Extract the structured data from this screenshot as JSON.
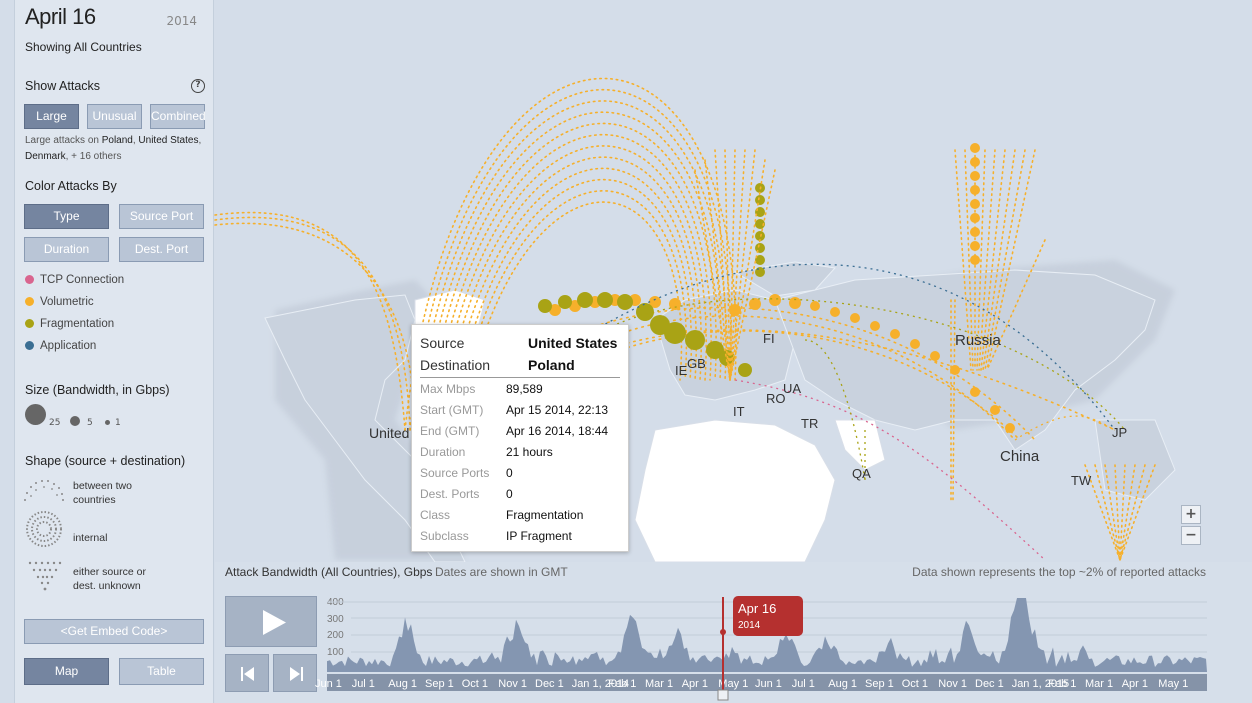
{
  "header": {
    "date": "April 16",
    "year": "2014",
    "subtitle": "Showing All Countries"
  },
  "show_attacks": {
    "title": "Show Attacks",
    "help_label": "?",
    "buttons": [
      "Large",
      "Unusual",
      "Combined"
    ],
    "active": "Large",
    "desc_prefix": "Large attacks on ",
    "desc_countries": [
      "Poland",
      "United States",
      "Denmark"
    ],
    "desc_suffix": ", + 16 others"
  },
  "color_by": {
    "title": "Color Attacks By",
    "buttons": [
      "Type",
      "Source Port",
      "Duration",
      "Dest. Port"
    ],
    "active": "Type",
    "legend": [
      {
        "label": "TCP Connection",
        "color": "#d9658f"
      },
      {
        "label": "Volumetric",
        "color": "#f6b02b"
      },
      {
        "label": "Fragmentation",
        "color": "#a9a315"
      },
      {
        "label": "Application",
        "color": "#3a6e93"
      }
    ]
  },
  "size": {
    "title": "Size (Bandwidth, in Gbps)",
    "values": [
      "25",
      "5",
      "1"
    ]
  },
  "shape": {
    "title": "Shape (source + destination)",
    "items": [
      "between two countries",
      "internal",
      "either source or dest. unknown"
    ]
  },
  "embed_label": "<Get Embed Code>",
  "view": {
    "buttons": [
      "Map",
      "Table"
    ],
    "active": "Map"
  },
  "map_labels": [
    "United",
    "IE",
    "GB",
    "FI",
    "Russia",
    "UA",
    "RO",
    "IT",
    "TR",
    "QA",
    "China",
    "JP",
    "TW"
  ],
  "tooltip": {
    "source_label": "Source",
    "source": "United States",
    "dest_label": "Destination",
    "dest": "Poland",
    "rows": [
      {
        "k": "Max Mbps",
        "v": "89,589"
      },
      {
        "k": "Start (GMT)",
        "v": "Apr 15 2014, 22:13"
      },
      {
        "k": "End (GMT)",
        "v": "Apr 16 2014, 18:44"
      },
      {
        "k": "Duration",
        "v": "21 hours"
      },
      {
        "k": "Source Ports",
        "v": "0"
      },
      {
        "k": "Dest. Ports",
        "v": "0"
      },
      {
        "k": "Class",
        "v": "Fragmentation"
      },
      {
        "k": "Subclass",
        "v": "IP Fragment"
      }
    ]
  },
  "zoom": {
    "in": "+",
    "out": "−"
  },
  "bandwidth": {
    "title": "Attack Bandwidth (All Countries), Gbps",
    "gmt_note": "Dates are shown in GMT",
    "top_note": "Data shown represents the top ~2% of reported attacks",
    "y_ticks": [
      "400",
      "300",
      "200",
      "100"
    ],
    "x_ticks": [
      "Jun 1",
      "Jul 1",
      "Aug 1",
      "Sep 1",
      "Oct 1",
      "Nov 1",
      "Dec 1",
      "Jan 1, 2014",
      "Feb 1",
      "Mar 1",
      "Apr 1",
      "May 1",
      "Jun 1",
      "Jul 1",
      "Aug 1",
      "Sep 1",
      "Oct 1",
      "Nov 1",
      "Dec 1",
      "Jan 1, 2015",
      "Feb 1",
      "Mar 1",
      "Apr 1",
      "May 1"
    ],
    "marker_date": "Apr 16",
    "marker_year": "2014"
  },
  "colors": {
    "accent": "#b5302f",
    "arc": "#f6b02b",
    "frag": "#a9a315",
    "land": "#ffffff",
    "land_shade": "#c9d2de",
    "chart_fill": "#8496b1"
  }
}
